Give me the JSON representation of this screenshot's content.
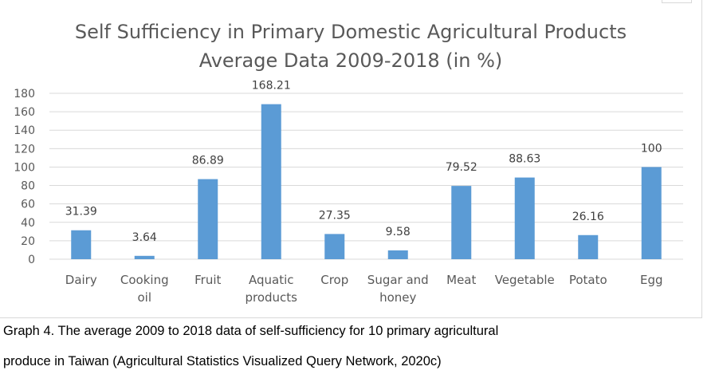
{
  "chart_data": {
    "type": "bar",
    "title": [
      "Self Sufficiency in Primary Domestic Agricultural Products",
      "Average Data 2009-2018 (in %)"
    ],
    "categories": [
      [
        "Dairy"
      ],
      [
        "Cooking",
        "oil"
      ],
      [
        "Fruit"
      ],
      [
        "Aquatic",
        "products"
      ],
      [
        "Crop"
      ],
      [
        "Sugar and",
        "honey"
      ],
      [
        "Meat"
      ],
      [
        "Vegetable"
      ],
      [
        "Potato"
      ],
      [
        "Egg"
      ]
    ],
    "values": [
      31.39,
      3.64,
      86.89,
      168.21,
      27.35,
      9.58,
      79.52,
      88.63,
      26.16,
      100
    ],
    "data_labels": [
      "31.39",
      "3.64",
      "86.89",
      "168.21",
      "27.35",
      "9.58",
      "79.52",
      "88.63",
      "26.16",
      "100"
    ],
    "ylim": [
      0,
      180
    ],
    "yticks": [
      0,
      20,
      40,
      60,
      80,
      100,
      120,
      140,
      160,
      180
    ],
    "grid": true,
    "bar_color": "#5b9bd5",
    "grid_color": "#d9d9d9"
  },
  "caption": {
    "line1": "Graph 4. The average 2009 to 2018 data of self-sufficiency for 10 primary agricultural",
    "line2": "produce in Taiwan (Agricultural Statistics Visualized Query Network, 2020c)"
  }
}
